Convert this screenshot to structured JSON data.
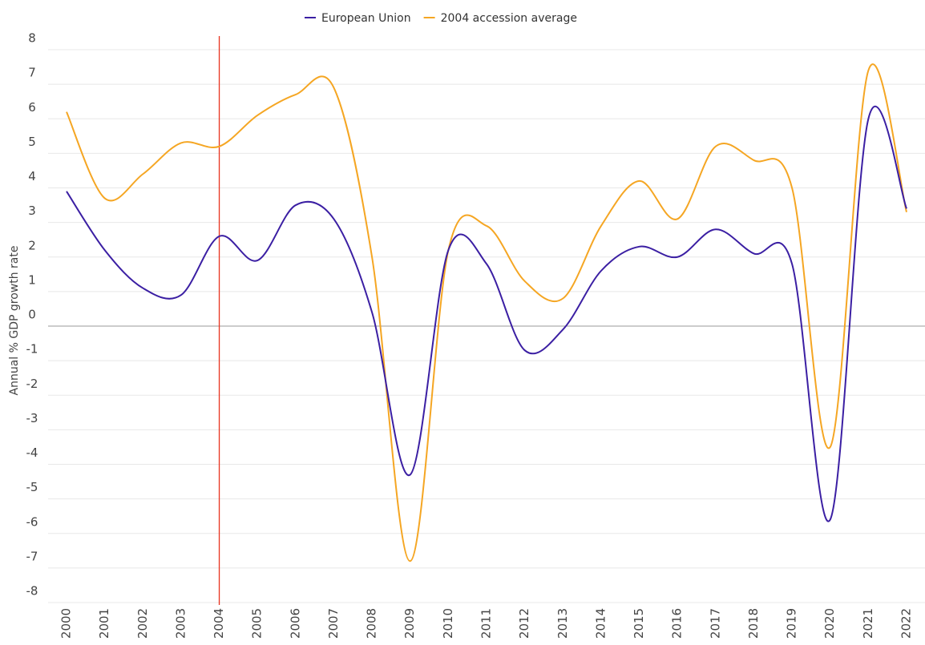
{
  "chart_data": {
    "type": "line",
    "y_label": "Annual % GDP growth rate",
    "categories": [
      "2000",
      "2001",
      "2002",
      "2003",
      "2004",
      "2005",
      "2006",
      "2007",
      "2008",
      "2009",
      "2010",
      "2011",
      "2012",
      "2013",
      "2014",
      "2015",
      "2016",
      "2017",
      "2018",
      "2019",
      "2020",
      "2021",
      "2022"
    ],
    "series": [
      {
        "name": "European Union",
        "color": "#3b1fa3",
        "values": [
          3.9,
          2.2,
          1.1,
          0.9,
          2.6,
          1.9,
          3.5,
          3.1,
          0.4,
          -4.3,
          2.2,
          1.8,
          -0.7,
          -0.1,
          1.6,
          2.3,
          2.0,
          2.8,
          2.1,
          1.8,
          -5.6,
          6.0,
          3.4
        ]
      },
      {
        "name": "2004 accession average",
        "color": "#f5a623",
        "values": [
          6.2,
          3.7,
          4.4,
          5.3,
          5.2,
          6.1,
          6.7,
          6.9,
          2.0,
          -6.8,
          2.2,
          2.9,
          1.3,
          0.8,
          2.9,
          4.2,
          3.1,
          5.2,
          4.8,
          4.0,
          -3.5,
          7.4,
          3.3
        ]
      }
    ],
    "ylim": [
      -8,
      8
    ],
    "yticks": [
      -8,
      -7,
      -6,
      -5,
      -4,
      -3,
      -2,
      -1,
      0,
      1,
      2,
      3,
      4,
      5,
      6,
      7,
      8
    ],
    "grid": true,
    "legend": "top",
    "highlight_category": "2004",
    "highlight_color": "#e8321e"
  }
}
